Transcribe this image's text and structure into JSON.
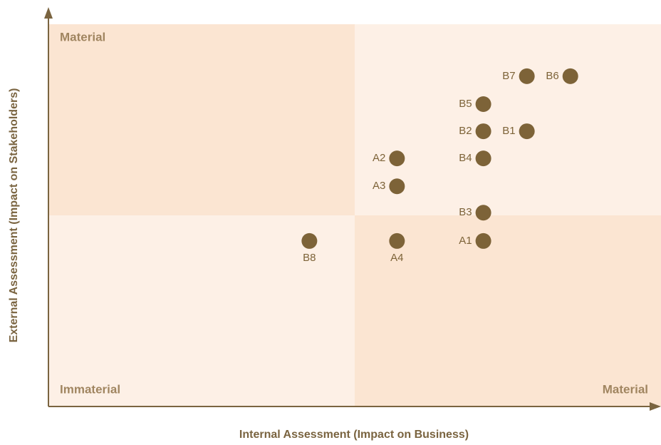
{
  "chart_data": {
    "type": "scatter",
    "x_label": "Internal Assessment (Impact on Business)",
    "y_label": "External Assessment (Impact on Stakeholders)",
    "annotations": [
      "Material",
      "Immaterial",
      "Material"
    ],
    "labels": [
      "B7",
      "B6",
      "B5",
      "B2",
      "B1",
      "A2",
      "B4",
      "A3",
      "B3",
      "A1",
      "B8",
      "A4"
    ],
    "x": [
      7.81,
      8.52,
      7.1,
      7.1,
      7.81,
      5.69,
      7.1,
      5.69,
      7.1,
      7.1,
      4.26,
      5.69
    ],
    "values": [
      8.64,
      8.64,
      7.91,
      7.2,
      7.2,
      6.49,
      6.49,
      5.76,
      5.07,
      4.33,
      4.33,
      4.33
    ],
    "color": "#7d6338",
    "xlim": [
      0,
      10
    ],
    "ylim": [
      0,
      10
    ]
  }
}
